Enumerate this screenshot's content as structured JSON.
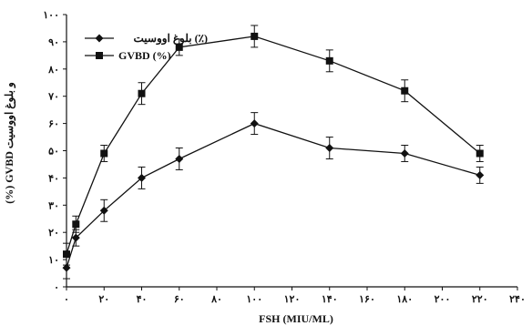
{
  "chart_data": {
    "type": "line",
    "xlabel": "FSH (MIU/ML)",
    "ylabel": "(%) GVBD و بلوغ اووسیت",
    "x_tick_labels": [
      "۰",
      "۲۰",
      "۴۰",
      "۶۰",
      "۸۰",
      "۱۰۰",
      "۱۲۰",
      "۱۴۰",
      "۱۶۰",
      "۱۸۰",
      "۲۰۰",
      "۲۲۰",
      "۲۴۰"
    ],
    "y_tick_labels": [
      "۰",
      "۱۰",
      "۲۰",
      "۳۰",
      "۴۰",
      "۵۰",
      "۶۰",
      "۷۰",
      "۸۰",
      "۹۰",
      "۱۰۰"
    ],
    "xlim": [
      0,
      240
    ],
    "ylim": [
      0,
      100
    ],
    "grid": false,
    "legend_position": "top-left",
    "series": [
      {
        "name": "بلوغ اووسیت (٪)",
        "marker": "diamond",
        "x": [
          0,
          5,
          20,
          40,
          60,
          100,
          140,
          180,
          220
        ],
        "y": [
          7,
          18,
          28,
          40,
          47,
          60,
          51,
          49,
          41
        ],
        "err": [
          4,
          3,
          4,
          4,
          4,
          4,
          4,
          3,
          3
        ]
      },
      {
        "name": "GVBD (%)",
        "marker": "square",
        "x": [
          0,
          5,
          20,
          40,
          60,
          100,
          140,
          180,
          220
        ],
        "y": [
          12,
          23,
          49,
          71,
          88,
          92,
          83,
          72,
          49
        ],
        "err": [
          4,
          3,
          3,
          4,
          3,
          4,
          4,
          4,
          3
        ]
      }
    ]
  }
}
